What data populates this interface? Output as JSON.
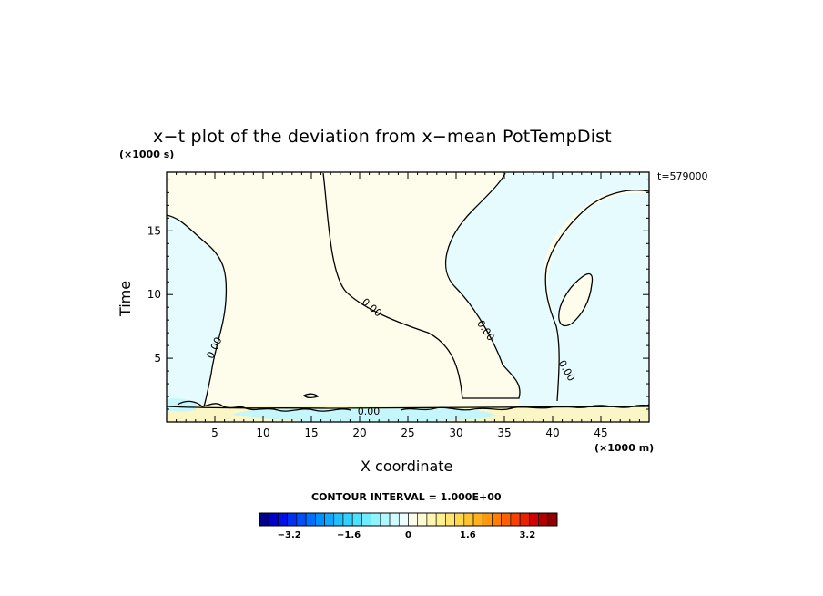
{
  "chart_data": {
    "type": "contour",
    "title": "x−t plot of the deviation from x−mean PotTempDist",
    "xlabel": "X coordinate",
    "ylabel": "Time",
    "x_unit": "(×1000 m)",
    "y_unit": "(×1000 s)",
    "time_stamp": "t=579000",
    "xlim": [
      0,
      50
    ],
    "ylim": [
      0,
      19.6
    ],
    "x_ticks": [
      "5",
      "10",
      "15",
      "20",
      "25",
      "30",
      "35",
      "40",
      "45"
    ],
    "y_ticks": [
      "5",
      "10",
      "15"
    ],
    "contour_interval_text": "CONTOUR INTERVAL = 1.000E+00",
    "contour_labels": [
      "0.00",
      "0.00",
      "0.00",
      "0.00",
      "0.00"
    ],
    "regions": [
      {
        "sign": "negative",
        "approx_value": -0.2,
        "color": "#e6fbfd",
        "description_x_range": [
          0,
          6
        ]
      },
      {
        "sign": "positive",
        "approx_value": 0.2,
        "color": "#fefdeb",
        "description_x_range": [
          6,
          30
        ]
      },
      {
        "sign": "negative",
        "approx_value": -0.2,
        "color": "#e6fbfd",
        "description_x_range": [
          30,
          50
        ]
      },
      {
        "sign": "positive",
        "approx_value": 0.6,
        "color": "#fbf6c6",
        "description_x_range": [
          0,
          50
        ],
        "time_range": [
          0,
          1
        ]
      },
      {
        "sign": "negative",
        "approx_value": -0.6,
        "color": "#c4f6fb",
        "description_x_range": [
          20,
          32
        ],
        "time_range": [
          0,
          1
        ]
      }
    ],
    "colorbar": {
      "min": -4,
      "max": 4,
      "tick_labels": [
        "−3.2",
        "−1.6",
        "0",
        "1.6",
        "3.2"
      ],
      "tick_values": [
        -3.2,
        -1.6,
        0,
        1.6,
        3.2
      ],
      "colors": [
        "#00008b",
        "#0000c8",
        "#0010e6",
        "#0030f0",
        "#0050f8",
        "#0070ff",
        "#0090ff",
        "#10a8ff",
        "#20c0ff",
        "#30d0ff",
        "#50e0ff",
        "#70ecff",
        "#90f4ff",
        "#b0f8ff",
        "#d0fbff",
        "#ecfdff",
        "#fffdec",
        "#fffbd0",
        "#fff6b0",
        "#fff090",
        "#ffe470",
        "#ffd650",
        "#ffc430",
        "#ffb020",
        "#ff9810",
        "#ff8000",
        "#ff6000",
        "#f84000",
        "#e82000",
        "#d00000",
        "#b00000",
        "#900000"
      ]
    }
  }
}
